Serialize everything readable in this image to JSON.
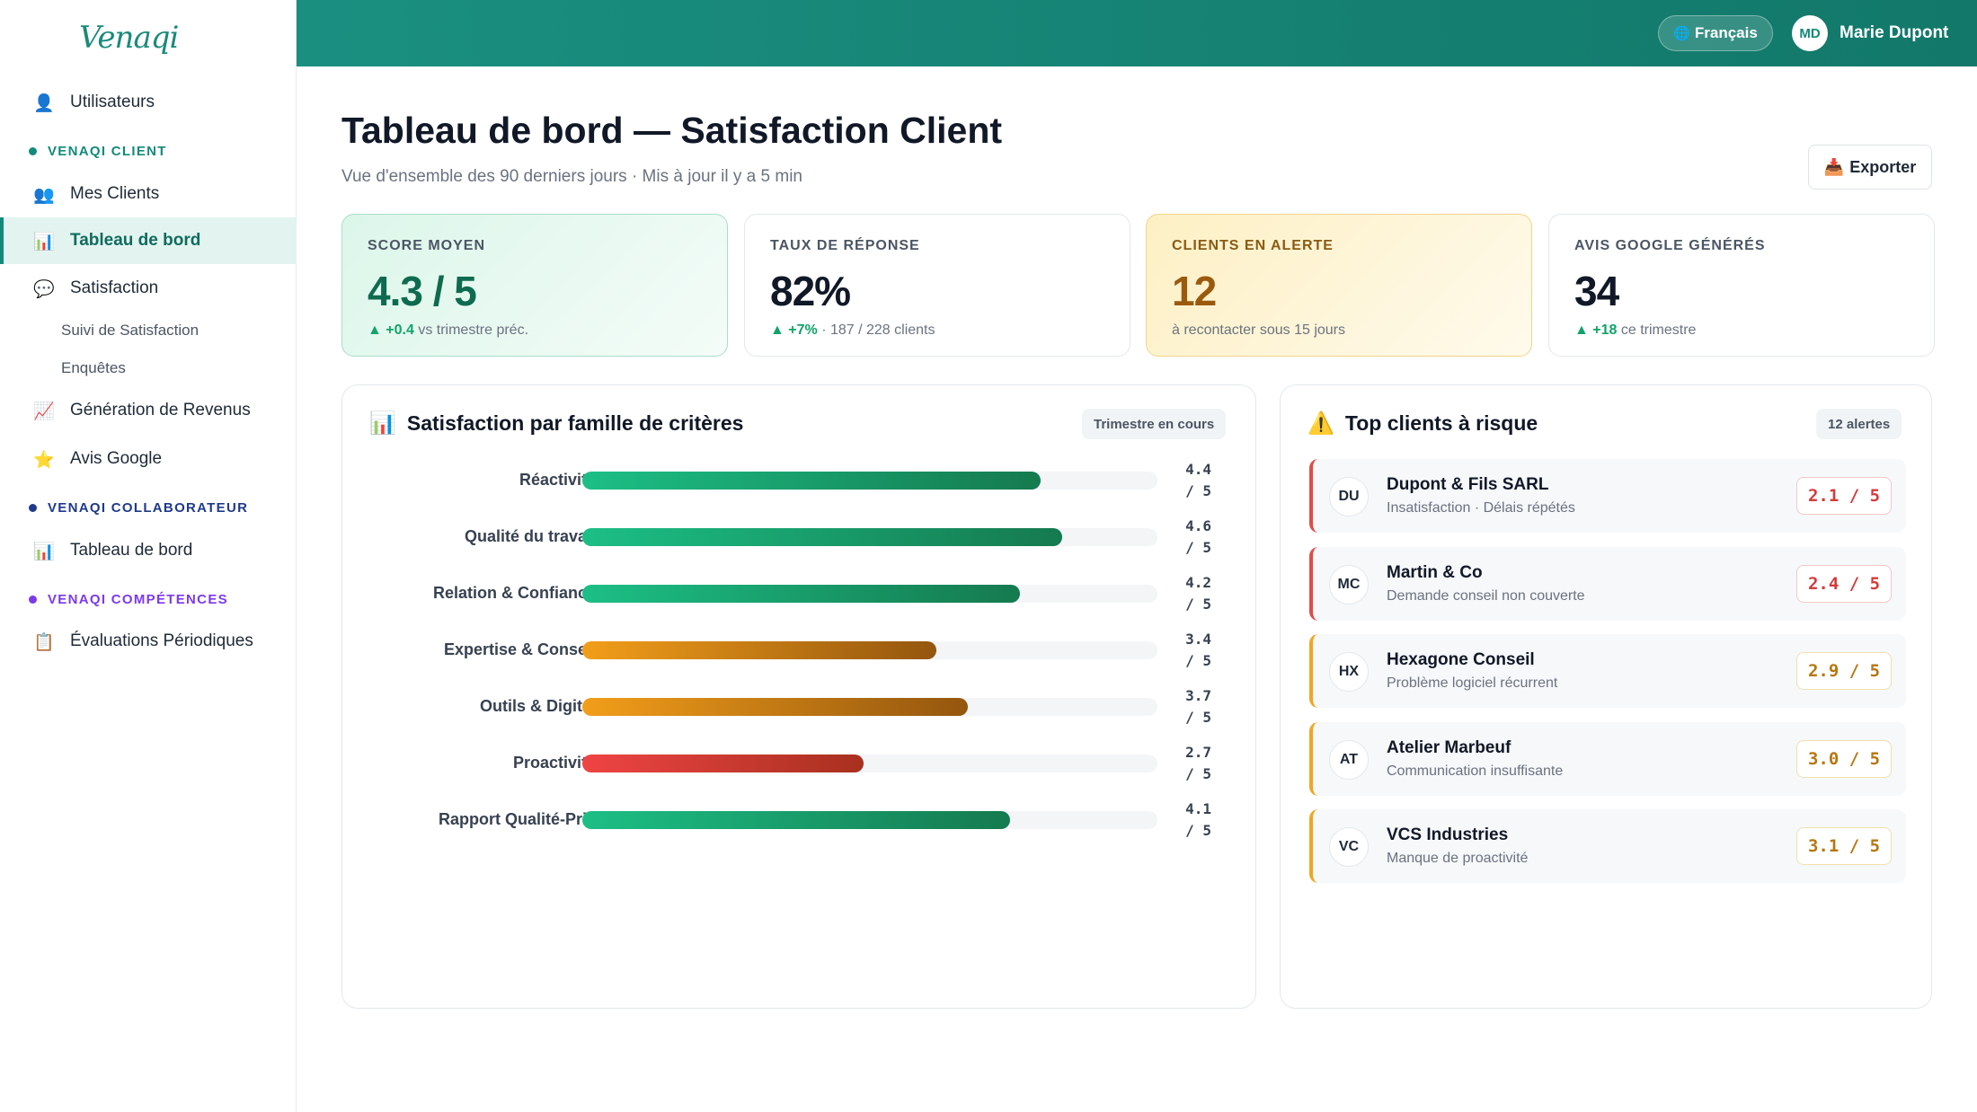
{
  "app": {
    "logo": "Venaqi"
  },
  "sidebar": {
    "items": [
      {
        "icon": "👤",
        "label": "Utilisateurs"
      },
      {
        "icon": "👥",
        "label": "Mes Clients"
      },
      {
        "icon": "📊",
        "label": "Tableau de bord"
      },
      {
        "icon": "💬",
        "label": "Satisfaction"
      },
      {
        "icon": "📈",
        "label": "Génération de Revenus"
      },
      {
        "icon": "⭐",
        "label": "Avis Google"
      },
      {
        "icon": "📊",
        "label": "Tableau de bord"
      },
      {
        "icon": "📋",
        "label": "Évaluations Périodiques"
      }
    ],
    "subitems": [
      "Suivi de Satisfaction",
      "Enquêtes"
    ],
    "sections": [
      {
        "label": "VENAQI CLIENT",
        "color": "#138a79"
      },
      {
        "label": "VENAQI COLLABORATEUR",
        "color": "#1e3a8a"
      },
      {
        "label": "VENAQI COMPÉTENCES",
        "color": "#7c3aed"
      }
    ]
  },
  "topbar": {
    "language": "Français",
    "globe_icon": "🌐",
    "avatar_initials": "MD",
    "user_name": "Marie Dupont"
  },
  "header": {
    "title": "Tableau de bord — Satisfaction Client",
    "subtitle": "Vue d'ensemble des 90 derniers jours · Mis à jour il y a 5 min",
    "export_icon": "📥",
    "export_label": "Exporter"
  },
  "kpis": [
    {
      "label": "SCORE MOYEN",
      "value": "4.3 / 5",
      "delta": "▲ +0.4",
      "note": " vs trimestre préc."
    },
    {
      "label": "TAUX DE RÉPONSE",
      "value": "82%",
      "delta": "▲ +7%",
      "note": " · 187 / 228 clients"
    },
    {
      "label": "CLIENTS EN ALERTE",
      "value": "12",
      "delta": "",
      "note": "à recontacter sous 15 jours"
    },
    {
      "label": "AVIS GOOGLE GÉNÉRÉS",
      "value": "34",
      "delta": "▲ +18",
      "note": " ce trimestre"
    }
  ],
  "satisfaction": {
    "icon": "📊",
    "title": "Satisfaction par famille de critères",
    "period": "Trimestre en cours",
    "rows": [
      {
        "label": "Réactivité",
        "value_text": "4.4 / 5",
        "score": 4.4,
        "level": "good"
      },
      {
        "label": "Qualité du travail",
        "value_text": "4.6 / 5",
        "score": 4.6,
        "level": "good"
      },
      {
        "label": "Relation & Confiance",
        "value_text": "4.2 / 5",
        "score": 4.2,
        "level": "good"
      },
      {
        "label": "Expertise & Conseil",
        "value_text": "3.4 / 5",
        "score": 3.4,
        "level": "mid"
      },
      {
        "label": "Outils & Digital",
        "value_text": "3.7 / 5",
        "score": 3.7,
        "level": "mid"
      },
      {
        "label": "Proactivité",
        "value_text": "2.7 / 5",
        "score": 2.7,
        "level": "bad"
      },
      {
        "label": "Rapport Qualité-Prix",
        "value_text": "4.1 / 5",
        "score": 4.1,
        "level": "good"
      }
    ],
    "colors": {
      "good": [
        "#1cbf86",
        "#157a4f"
      ],
      "mid": [
        "#f29e1a",
        "#94560e"
      ],
      "bad": [
        "#ef4444",
        "#a8301f"
      ]
    }
  },
  "risk": {
    "icon": "⚠️",
    "title": "Top clients à risque",
    "badge": "12 alertes",
    "clients": [
      {
        "initials": "DU",
        "name": "Dupont & Fils SARL",
        "desc": "Insatisfaction · Délais répétés",
        "score": "2.1 / 5",
        "level": "red"
      },
      {
        "initials": "MC",
        "name": "Martin & Co",
        "desc": "Demande conseil non couverte",
        "score": "2.4 / 5",
        "level": "red"
      },
      {
        "initials": "HX",
        "name": "Hexagone Conseil",
        "desc": "Problème logiciel récurrent",
        "score": "2.9 / 5",
        "level": "amber"
      },
      {
        "initials": "AT",
        "name": "Atelier Marbeuf",
        "desc": "Communication insuffisante",
        "score": "3.0 / 5",
        "level": "amber"
      },
      {
        "initials": "VC",
        "name": "VCS Industries",
        "desc": "Manque de proactivité",
        "score": "3.1 / 5",
        "level": "amber"
      }
    ]
  }
}
